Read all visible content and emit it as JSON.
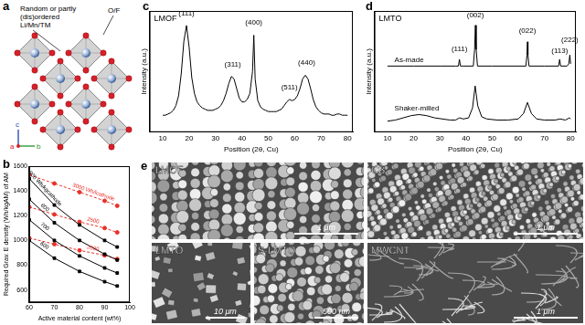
{
  "panel_a": {
    "label": "a",
    "annotation_lines": [
      "Random or partly",
      "(dis)ordered",
      "Li/Mn/TM"
    ],
    "site_label": "O/F",
    "axes": [
      "c",
      "a",
      "b"
    ]
  },
  "chart_data": [
    {
      "panel": "b",
      "type": "line",
      "x_label": "Active material content (wt%)",
      "y_label": "Required Grav. E density (Wh/kgAM) of AM",
      "x": [
        60,
        70,
        80,
        90,
        95
      ],
      "series": [
        {
          "name": "900 Wh/kgcathode",
          "color": "#000000",
          "marker": "square",
          "line_style": "solid",
          "values": [
            1500,
            1286,
            1125,
            1000,
            947
          ]
        },
        {
          "name": "800",
          "color": "#000000",
          "marker": "square",
          "line_style": "solid",
          "values": [
            1333,
            1143,
            1000,
            889,
            842
          ]
        },
        {
          "name": "700",
          "color": "#000000",
          "marker": "square",
          "line_style": "solid",
          "values": [
            1167,
            1000,
            875,
            778,
            737
          ]
        },
        {
          "name": "600",
          "color": "#000000",
          "marker": "square",
          "line_style": "solid",
          "values": [
            1000,
            857,
            750,
            667,
            632
          ]
        },
        {
          "name": "3000 Wh/lcathode",
          "color": "#e8312a",
          "marker": "circle",
          "line_style": "dashed",
          "values": [
            1530,
            1460,
            1390,
            1320,
            1280
          ]
        },
        {
          "name": "2500",
          "color": "#e8312a",
          "marker": "circle",
          "line_style": "dashed",
          "values": [
            1270,
            1210,
            1150,
            1100,
            1065
          ]
        },
        {
          "name": "2000",
          "color": "#e8312a",
          "marker": "circle",
          "line_style": "dashed",
          "values": [
            1020,
            970,
            920,
            880,
            850
          ]
        }
      ],
      "xlim": [
        60,
        100
      ],
      "xticks": [
        60,
        70,
        80,
        90,
        100
      ],
      "ylim": [
        500,
        1600
      ],
      "yticks": [
        600,
        800,
        1000,
        1200,
        1400,
        1600
      ],
      "grid": false
    },
    {
      "panel": "c",
      "type": "line",
      "title": "LMOF",
      "x_label": "Position (2θ, Cu)",
      "y_label": "Intensity (a.u.)",
      "x": [
        10,
        11,
        12,
        13,
        14,
        15,
        16,
        17,
        18,
        19,
        20,
        21,
        22,
        23,
        24,
        25,
        26,
        27,
        28,
        29,
        30,
        31,
        32,
        33,
        34,
        35,
        36,
        37,
        38,
        39,
        40,
        41,
        42,
        43,
        44,
        44.5,
        45,
        46,
        47,
        48,
        49,
        50,
        51,
        52,
        53,
        54,
        55,
        56,
        57,
        58,
        59,
        60,
        61,
        62,
        63,
        64,
        65,
        66,
        67,
        68,
        69,
        70,
        71,
        72,
        73,
        74,
        75,
        76,
        77,
        78,
        79,
        80
      ],
      "values": [
        14,
        14,
        15,
        16,
        18,
        22,
        30,
        48,
        75,
        88,
        70,
        45,
        32,
        25,
        22,
        20,
        19,
        18,
        18,
        18,
        19,
        20,
        22,
        26,
        32,
        40,
        46,
        44,
        36,
        28,
        25,
        25,
        27,
        32,
        50,
        80,
        44,
        26,
        21,
        19,
        18,
        17,
        17,
        17,
        17,
        18,
        19,
        22,
        25,
        27,
        26,
        27,
        30,
        36,
        44,
        47,
        44,
        36,
        27,
        21,
        18,
        16,
        15,
        15,
        15,
        14,
        14,
        15,
        15,
        14,
        14,
        14
      ],
      "color": "#000000",
      "xlim": [
        5,
        82
      ],
      "xticks": [
        10,
        20,
        30,
        40,
        50,
        60,
        70,
        80
      ],
      "ylim": [
        0,
        100
      ],
      "tick_labels": "x",
      "grid": false,
      "annotations": [
        {
          "text": "(111)",
          "x": 19,
          "y": 95
        },
        {
          "text": "(311)",
          "x": 36.5,
          "y": 53
        },
        {
          "text": "(400)",
          "x": 44.5,
          "y": 87
        },
        {
          "text": "(511)",
          "x": 58,
          "y": 34
        },
        {
          "text": "(440)",
          "x": 64.5,
          "y": 54
        }
      ]
    },
    {
      "panel": "d",
      "type": "line",
      "title": "LMTO",
      "x_label": "Position (2θ, Cu)",
      "y_label": "Intensity (a.u.)",
      "series": [
        {
          "name": "As-made",
          "color": "#000000",
          "x": [
            10,
            20,
            30,
            36,
            37.1,
            37.5,
            37.9,
            39,
            42.8,
            43.3,
            43.6,
            43.9,
            44.4,
            50,
            60,
            62.9,
            63.3,
            63.5,
            63.7,
            64.1,
            70,
            75.4,
            75.8,
            76.2,
            78.6,
            79.3,
            79.7,
            80
          ],
          "values": [
            60,
            60,
            60,
            60,
            60,
            66,
            60,
            60,
            60,
            75,
            97,
            75,
            60,
            60,
            60,
            60,
            70,
            82,
            70,
            60,
            60,
            60,
            66,
            60,
            60,
            62,
            70,
            62
          ]
        },
        {
          "name": "Shaker-milled",
          "color": "#000000",
          "x": [
            10,
            13,
            16,
            19,
            22,
            25,
            28,
            31,
            34,
            36,
            37.5,
            39,
            41,
            42.5,
            43.5,
            44.5,
            46,
            48,
            52,
            56,
            60,
            62,
            63.5,
            65,
            67,
            70,
            74,
            76,
            78,
            79.5,
            80
          ],
          "values": [
            10,
            11,
            13,
            15,
            16,
            15,
            13,
            12,
            11,
            11,
            13,
            12,
            13,
            22,
            42,
            24,
            14,
            12,
            11,
            11,
            12,
            17,
            27,
            17,
            12,
            11,
            11,
            12,
            11,
            13,
            12
          ]
        }
      ],
      "xlim": [
        5,
        82
      ],
      "xticks": [
        10,
        20,
        30,
        40,
        50,
        60,
        70,
        80
      ],
      "ylim": [
        0,
        110
      ],
      "tick_labels": "x",
      "grid": false,
      "annotations": [
        {
          "text": "(111)",
          "x": 37.5,
          "y": 72
        },
        {
          "text": "(002)",
          "x": 43.6,
          "y": 103
        },
        {
          "text": "(022)",
          "x": 63.5,
          "y": 89
        },
        {
          "text": "(113)",
          "x": 75.8,
          "y": 70
        },
        {
          "text": "(222)",
          "x": 79.7,
          "y": 80
        }
      ]
    }
  ],
  "panel_e": {
    "label": "e",
    "images": [
      {
        "label": "LMOF",
        "scale_bar": "1 μm"
      },
      {
        "label": "CB",
        "scale_bar": "1 μm"
      },
      {
        "label": "LMTO",
        "scale_bar": "10 μm"
      },
      {
        "label": "S-LMTO",
        "scale_bar": "500 nm"
      },
      {
        "label": "MWCNT",
        "scale_bar": "1 μm"
      }
    ]
  }
}
